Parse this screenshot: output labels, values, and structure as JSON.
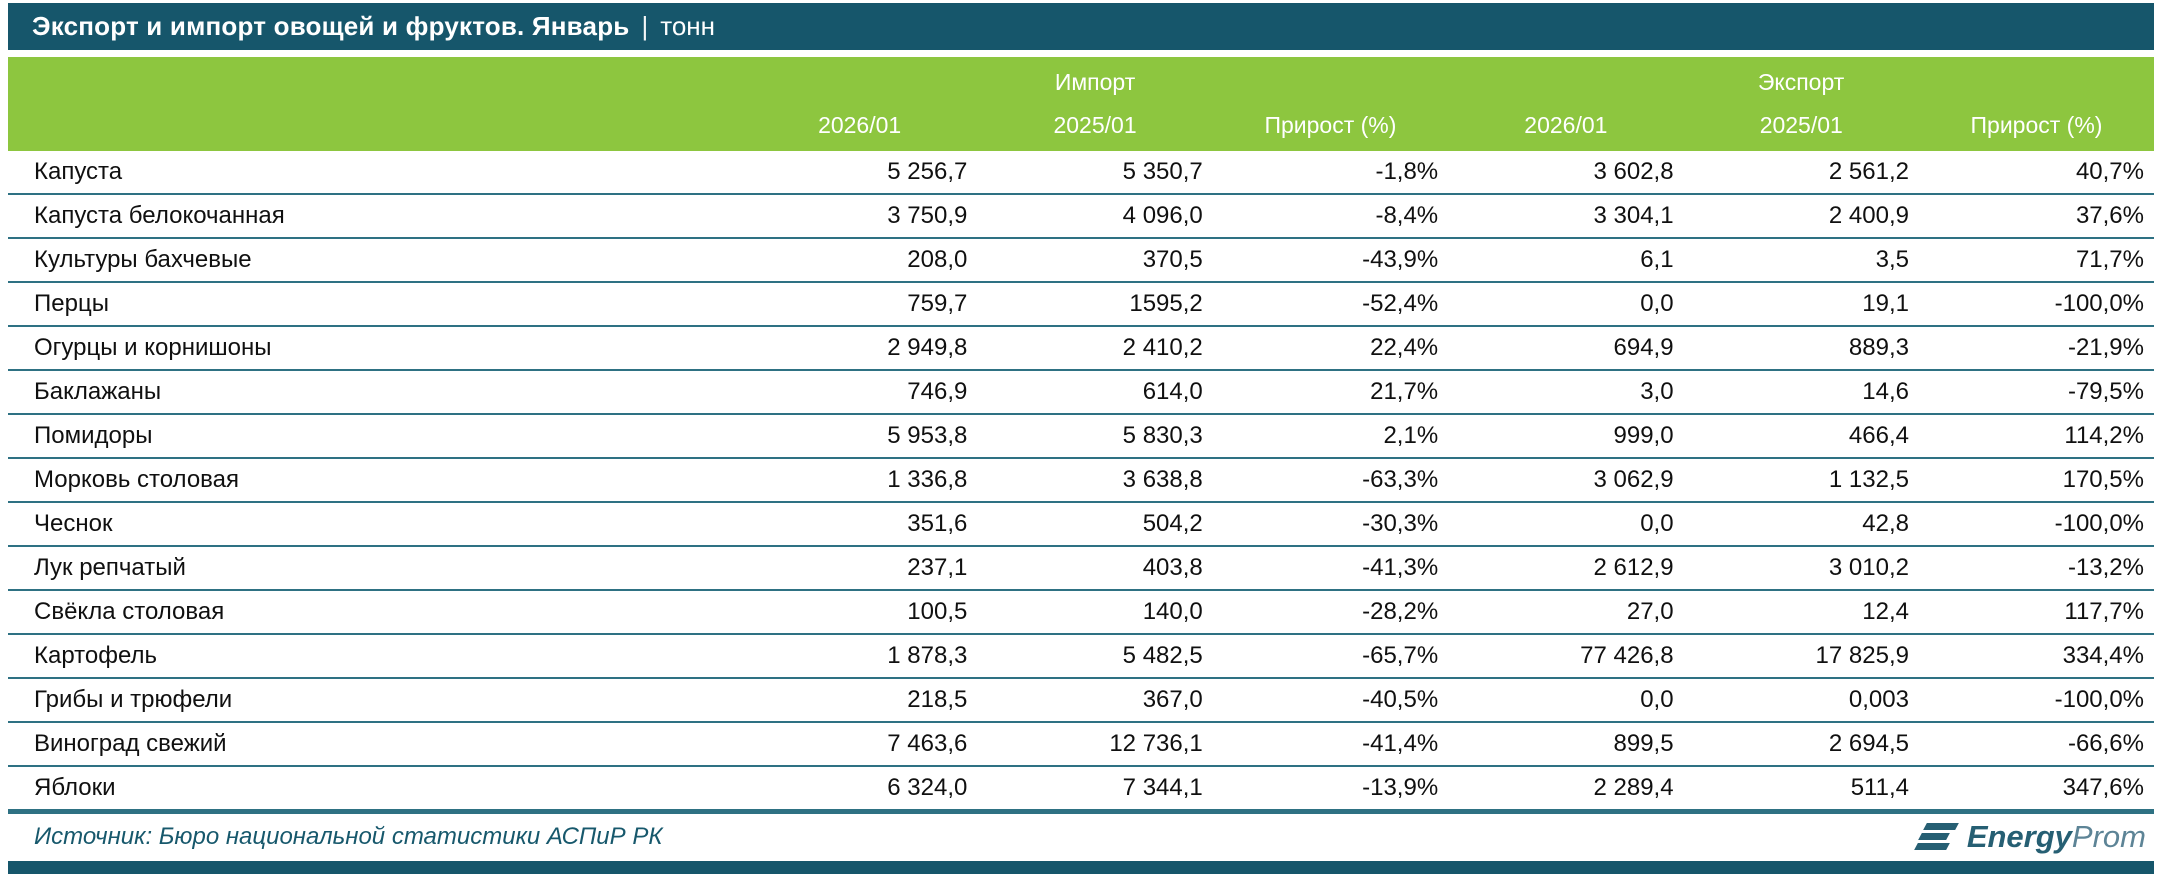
{
  "title": {
    "main": "Экспорт и импорт овощей и фруктов. Январь",
    "separator": "|",
    "unit": "тонн"
  },
  "chart_data": {
    "type": "table",
    "title": "Экспорт и импорт овощей и фруктов. Январь | тонн",
    "unit": "тонн",
    "column_groups": [
      "Импорт",
      "Экспорт"
    ],
    "columns": [
      "2026/01",
      "2025/01",
      "Прирост (%)",
      "2026/01",
      "2025/01",
      "Прирост (%)"
    ],
    "rows": [
      {
        "label": "Капуста",
        "values": [
          "5 256,7",
          "5 350,7",
          "-1,8%",
          "3 602,8",
          "2 561,2",
          "40,7%"
        ]
      },
      {
        "label": "Капуста белокочанная",
        "values": [
          "3 750,9",
          "4 096,0",
          "-8,4%",
          "3 304,1",
          "2 400,9",
          "37,6%"
        ]
      },
      {
        "label": "Культуры бахчевые",
        "values": [
          "208,0",
          "370,5",
          "-43,9%",
          "6,1",
          "3,5",
          "71,7%"
        ]
      },
      {
        "label": "Перцы",
        "values": [
          "759,7",
          "1595,2",
          "-52,4%",
          "0,0",
          "19,1",
          "-100,0%"
        ]
      },
      {
        "label": "Огурцы и корнишоны",
        "values": [
          "2 949,8",
          "2 410,2",
          "22,4%",
          "694,9",
          "889,3",
          "-21,9%"
        ]
      },
      {
        "label": "Баклажаны",
        "values": [
          "746,9",
          "614,0",
          "21,7%",
          "3,0",
          "14,6",
          "-79,5%"
        ]
      },
      {
        "label": "Помидоры",
        "values": [
          "5 953,8",
          "5 830,3",
          "2,1%",
          "999,0",
          "466,4",
          "114,2%"
        ]
      },
      {
        "label": "Морковь столовая",
        "values": [
          "1 336,8",
          "3 638,8",
          "-63,3%",
          "3 062,9",
          "1 132,5",
          "170,5%"
        ]
      },
      {
        "label": "Чеснок",
        "values": [
          "351,6",
          "504,2",
          "-30,3%",
          "0,0",
          "42,8",
          "-100,0%"
        ]
      },
      {
        "label": "Лук репчатый",
        "values": [
          "237,1",
          "403,8",
          "-41,3%",
          "2 612,9",
          "3 010,2",
          "-13,2%"
        ]
      },
      {
        "label": "Свёкла столовая",
        "values": [
          "100,5",
          "140,0",
          "-28,2%",
          "27,0",
          "12,4",
          "117,7%"
        ]
      },
      {
        "label": "Картофель",
        "values": [
          "1 878,3",
          "5 482,5",
          "-65,7%",
          "77 426,8",
          "17 825,9",
          "334,4%"
        ]
      },
      {
        "label": "Грибы и трюфели",
        "values": [
          "218,5",
          "367,0",
          "-40,5%",
          "0,0",
          "0,003",
          "-100,0%"
        ]
      },
      {
        "label": "Виноград свежий",
        "values": [
          "7 463,6",
          "12 736,1",
          "-41,4%",
          "899,5",
          "2 694,5",
          "-66,6%"
        ]
      },
      {
        "label": "Яблоки",
        "values": [
          "6 324,0",
          "7 344,1",
          "-13,9%",
          "2 289,4",
          "511,4",
          "347,6%"
        ]
      }
    ]
  },
  "footer": {
    "source": "Источник: Бюро национальной статистики АСПиР РК",
    "logo": {
      "bold": "Energy",
      "light": "Prom"
    }
  },
  "colors": {
    "title_bar": "#16566b",
    "header_green": "#8dc63f",
    "row_border": "#2e7183",
    "source_text": "#17586c",
    "logo_dark": "#265f73",
    "logo_light": "#5d8496"
  }
}
